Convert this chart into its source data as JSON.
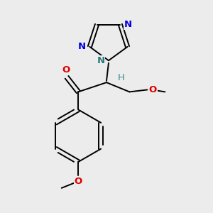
{
  "background_color": "#ececec",
  "bond_color": "#000000",
  "figsize": [
    3.0,
    3.0
  ],
  "dpi": 100,
  "lw": 1.4,
  "atoms": {
    "N_blue": "#0000dd",
    "N_teal": "#2a7a7a",
    "O_red": "#dd0000",
    "H_teal": "#3a8a8a",
    "C_black": "#000000"
  },
  "xlim": [
    0,
    10
  ],
  "ylim": [
    0,
    10
  ]
}
